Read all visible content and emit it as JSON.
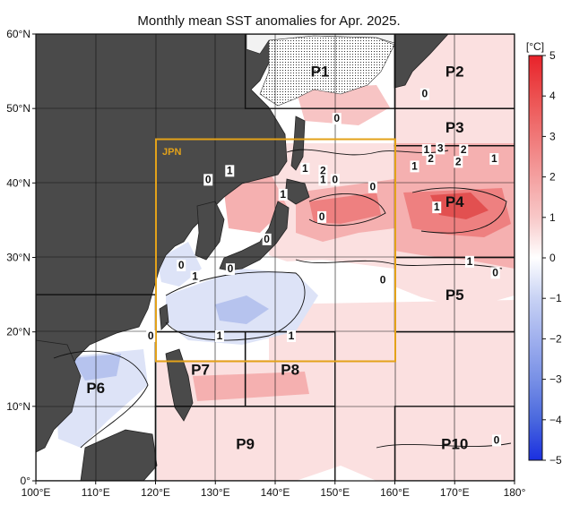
{
  "title": "Monthly mean SST anomalies for Apr. 2025.",
  "unit_label": "[°C]",
  "lon_ticks": [
    "100°E",
    "110°E",
    "120°E",
    "130°E",
    "140°E",
    "150°E",
    "160°E",
    "170°E",
    "180°"
  ],
  "lat_ticks": [
    "0°",
    "10°N",
    "20°N",
    "30°N",
    "40°N",
    "50°N",
    "60°N"
  ],
  "colorbar_ticks": [
    "5",
    "4",
    "3",
    "2",
    "1",
    "0",
    "−1",
    "−2",
    "−3",
    "−4",
    "−5"
  ],
  "jpn_label": "JPN",
  "regions": [
    {
      "id": "P1",
      "label": "P1",
      "lon": [
        135,
        160
      ],
      "lat": [
        50,
        60
      ]
    },
    {
      "id": "P2",
      "label": "P2",
      "lon": [
        160,
        180
      ],
      "lat": [
        50,
        60
      ]
    },
    {
      "id": "P3",
      "label": "P3",
      "lon": [
        160,
        180
      ],
      "lat": [
        45,
        50
      ]
    },
    {
      "id": "P4",
      "label": "P4",
      "lon": [
        160,
        180
      ],
      "lat": [
        30,
        45
      ]
    },
    {
      "id": "P5",
      "label": "P5",
      "lon": [
        160,
        180
      ],
      "lat": [
        20,
        30
      ]
    },
    {
      "id": "P6",
      "label": "P6",
      "lon": [
        100,
        120
      ],
      "lat": [
        0,
        25
      ]
    },
    {
      "id": "P7",
      "label": "P7",
      "lon": [
        120,
        135
      ],
      "lat": [
        10,
        20
      ]
    },
    {
      "id": "P8",
      "label": "P8",
      "lon": [
        135,
        150
      ],
      "lat": [
        10,
        20
      ]
    },
    {
      "id": "P9",
      "label": "P9",
      "lon": [
        120,
        150
      ],
      "lat": [
        0,
        10
      ]
    },
    {
      "id": "P10",
      "label": "P10",
      "lon": [
        160,
        180
      ],
      "lat": [
        0,
        10
      ]
    }
  ],
  "contour_labels": [
    {
      "text": "0",
      "lon": 150.3,
      "lat": 48.2
    },
    {
      "text": "0",
      "lon": 150.0,
      "lat": 40.0
    },
    {
      "text": "0",
      "lon": 147.8,
      "lat": 35.0
    },
    {
      "text": "0",
      "lon": 156.3,
      "lat": 39.0
    },
    {
      "text": "0",
      "lon": 165.0,
      "lat": 51.5
    },
    {
      "text": "1",
      "lon": 163.3,
      "lat": 41.8
    },
    {
      "text": "1",
      "lon": 165.3,
      "lat": 44.0
    },
    {
      "text": "2",
      "lon": 166.0,
      "lat": 42.8
    },
    {
      "text": "3",
      "lon": 167.6,
      "lat": 44.2
    },
    {
      "text": "2",
      "lon": 171.5,
      "lat": 44.0
    },
    {
      "text": "2",
      "lon": 170.6,
      "lat": 42.4
    },
    {
      "text": "1",
      "lon": 176.6,
      "lat": 42.8
    },
    {
      "text": "1",
      "lon": 167.0,
      "lat": 36.3
    },
    {
      "text": "1",
      "lon": 145.0,
      "lat": 41.5
    },
    {
      "text": "2",
      "lon": 148.0,
      "lat": 41.2
    },
    {
      "text": "1",
      "lon": 148.0,
      "lat": 40.0
    },
    {
      "text": "1",
      "lon": 141.3,
      "lat": 38.0
    },
    {
      "text": "1",
      "lon": 132.4,
      "lat": 41.2
    },
    {
      "text": "0",
      "lon": 128.8,
      "lat": 40.0
    },
    {
      "text": "0",
      "lon": 138.6,
      "lat": 32.0
    },
    {
      "text": "0",
      "lon": 132.5,
      "lat": 28.0
    },
    {
      "text": "0",
      "lon": 124.3,
      "lat": 28.5
    },
    {
      "text": "1",
      "lon": 126.6,
      "lat": 27.0
    },
    {
      "text": "0",
      "lon": 158.0,
      "lat": 26.5
    },
    {
      "text": "1",
      "lon": 172.5,
      "lat": 29.0
    },
    {
      "text": "0",
      "lon": 176.8,
      "lat": 27.5
    },
    {
      "text": "0",
      "lon": 119.2,
      "lat": 19.0
    },
    {
      "text": "1",
      "lon": 130.7,
      "lat": 19.0
    },
    {
      "text": "1",
      "lon": 142.7,
      "lat": 19.0
    },
    {
      "text": "0",
      "lon": 177.0,
      "lat": 5.0
    }
  ],
  "colors": {
    "land": "#4a4a4a",
    "land_white": "#f2f2f2",
    "ocean_base": "#ffffff",
    "jpn_box": "#e3a21a",
    "grid": "#111111",
    "warm_1": "#fbe0e0",
    "warm_2": "#f5b0b0",
    "warm_3": "#ee8080",
    "warm_4": "#e25050",
    "cool_1": "#dde3f7",
    "cool_2": "#b6c3ee"
  },
  "colorbar": {
    "min": -5,
    "max": 5
  }
}
